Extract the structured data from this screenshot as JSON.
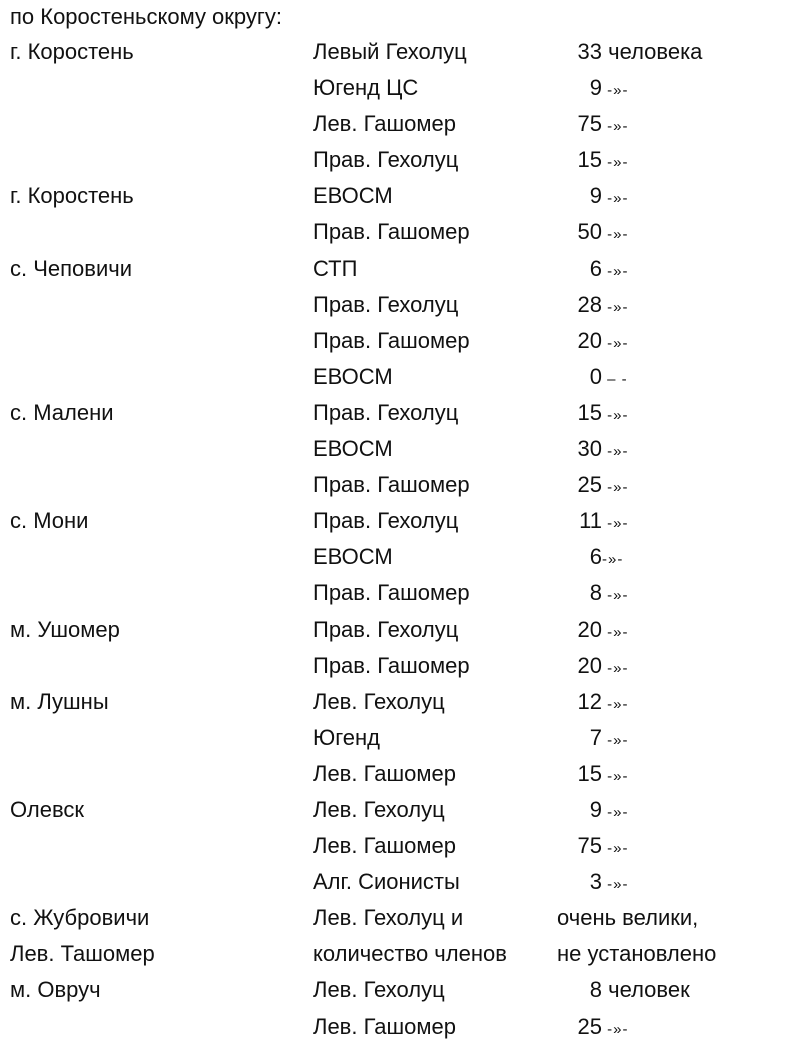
{
  "heading": "по Коростеньскому округу:",
  "rows": [
    {
      "place": "г. Коростень",
      "org": "Левый Гехолуц",
      "num": "33",
      "suffix": " человека",
      "small": false
    },
    {
      "place": "",
      "org": "Югенд ЦС",
      "num": "9",
      "suffix": " -»-",
      "small": true
    },
    {
      "place": "",
      "org": "Лев. Гашомер",
      "num": "75",
      "suffix": " -»-",
      "small": true
    },
    {
      "place": "",
      "org": "Прав. Гехолуц",
      "num": "15",
      "suffix": " -»-",
      "small": true
    },
    {
      "place": "г. Коростень",
      "org": "ЕВОСМ",
      "num": "9",
      "suffix": " -»-",
      "small": true
    },
    {
      "place": "",
      "org": "Прав. Гашомер",
      "num": "50",
      "suffix": " -»-",
      "small": true
    },
    {
      "place": "с. Чеповичи",
      "org": "СТП",
      "num": "6",
      "suffix": " -»-",
      "small": true
    },
    {
      "place": "",
      "org": "Прав. Гехолуц",
      "num": "28",
      "suffix": " -»-",
      "small": true
    },
    {
      "place": "",
      "org": "Прав. Гашомер",
      "num": "20",
      "suffix": " -»-",
      "small": true
    },
    {
      "place": "",
      "org": "ЕВОСМ",
      "num": "0",
      "suffix": " – -",
      "small": true
    },
    {
      "place": "с. Малени",
      "org": "Прав. Гехолуц",
      "num": "15",
      "suffix": " -»-",
      "small": true
    },
    {
      "place": "",
      "org": "ЕВОСМ",
      "num": "30",
      "suffix": " -»-",
      "small": true
    },
    {
      "place": "",
      "org": "Прав. Гашомер",
      "num": "25",
      "suffix": " -»-",
      "small": true
    },
    {
      "place": "с. Мони",
      "org": "Прав. Гехолуц",
      "num": "11",
      "suffix": " -»-",
      "small": true
    },
    {
      "place": "",
      "org": "ЕВОСМ",
      "num": "6",
      "suffix": "-»-",
      "small": true
    },
    {
      "place": "",
      "org": "Прав. Гашомер",
      "num": "8",
      "suffix": " -»-",
      "small": true
    },
    {
      "place": "м. Ушомер",
      "org": "Прав. Гехолуц",
      "num": "20",
      "suffix": " -»-",
      "small": true
    },
    {
      "place": "",
      "org": "Прав. Гашомер",
      "num": "20",
      "suffix": " -»-",
      "small": true
    },
    {
      "place": "м. Лушны",
      "org": "Лев. Гехолуц",
      "num": "12",
      "suffix": " -»-",
      "small": true
    },
    {
      "place": "",
      "org": "Югенд",
      "num": "7",
      "suffix": " -»-",
      "small": true
    },
    {
      "place": "",
      "org": "Лев. Гашомер",
      "num": "15",
      "suffix": " -»-",
      "small": true
    },
    {
      "place": "Олевск",
      "org": "Лев. Гехолуц",
      "num": "9",
      "suffix": " -»-",
      "small": true
    },
    {
      "place": "",
      "org": "Лев. Гашомер",
      "num": "75",
      "suffix": " -»-",
      "small": true
    },
    {
      "place": "",
      "org": "Алг. Сионисты",
      "num": "3",
      "suffix": " -»-",
      "small": true
    },
    {
      "place": "с. Жубровичи",
      "org": "Лев. Гехолуц и",
      "num": "",
      "suffix": "очень велики,",
      "small": false
    },
    {
      "place": "Лев. Ташомер",
      "org": "количество членов",
      "num": "",
      "suffix": "не установлено",
      "small": false
    },
    {
      "place": "м. Овруч",
      "org": "Лев. Гехолуц",
      "num": "8",
      "suffix": " человек",
      "small": false
    },
    {
      "place": "",
      "org": "Лев. Гашомер",
      "num": "25",
      "suffix": " -»-",
      "small": true
    }
  ]
}
